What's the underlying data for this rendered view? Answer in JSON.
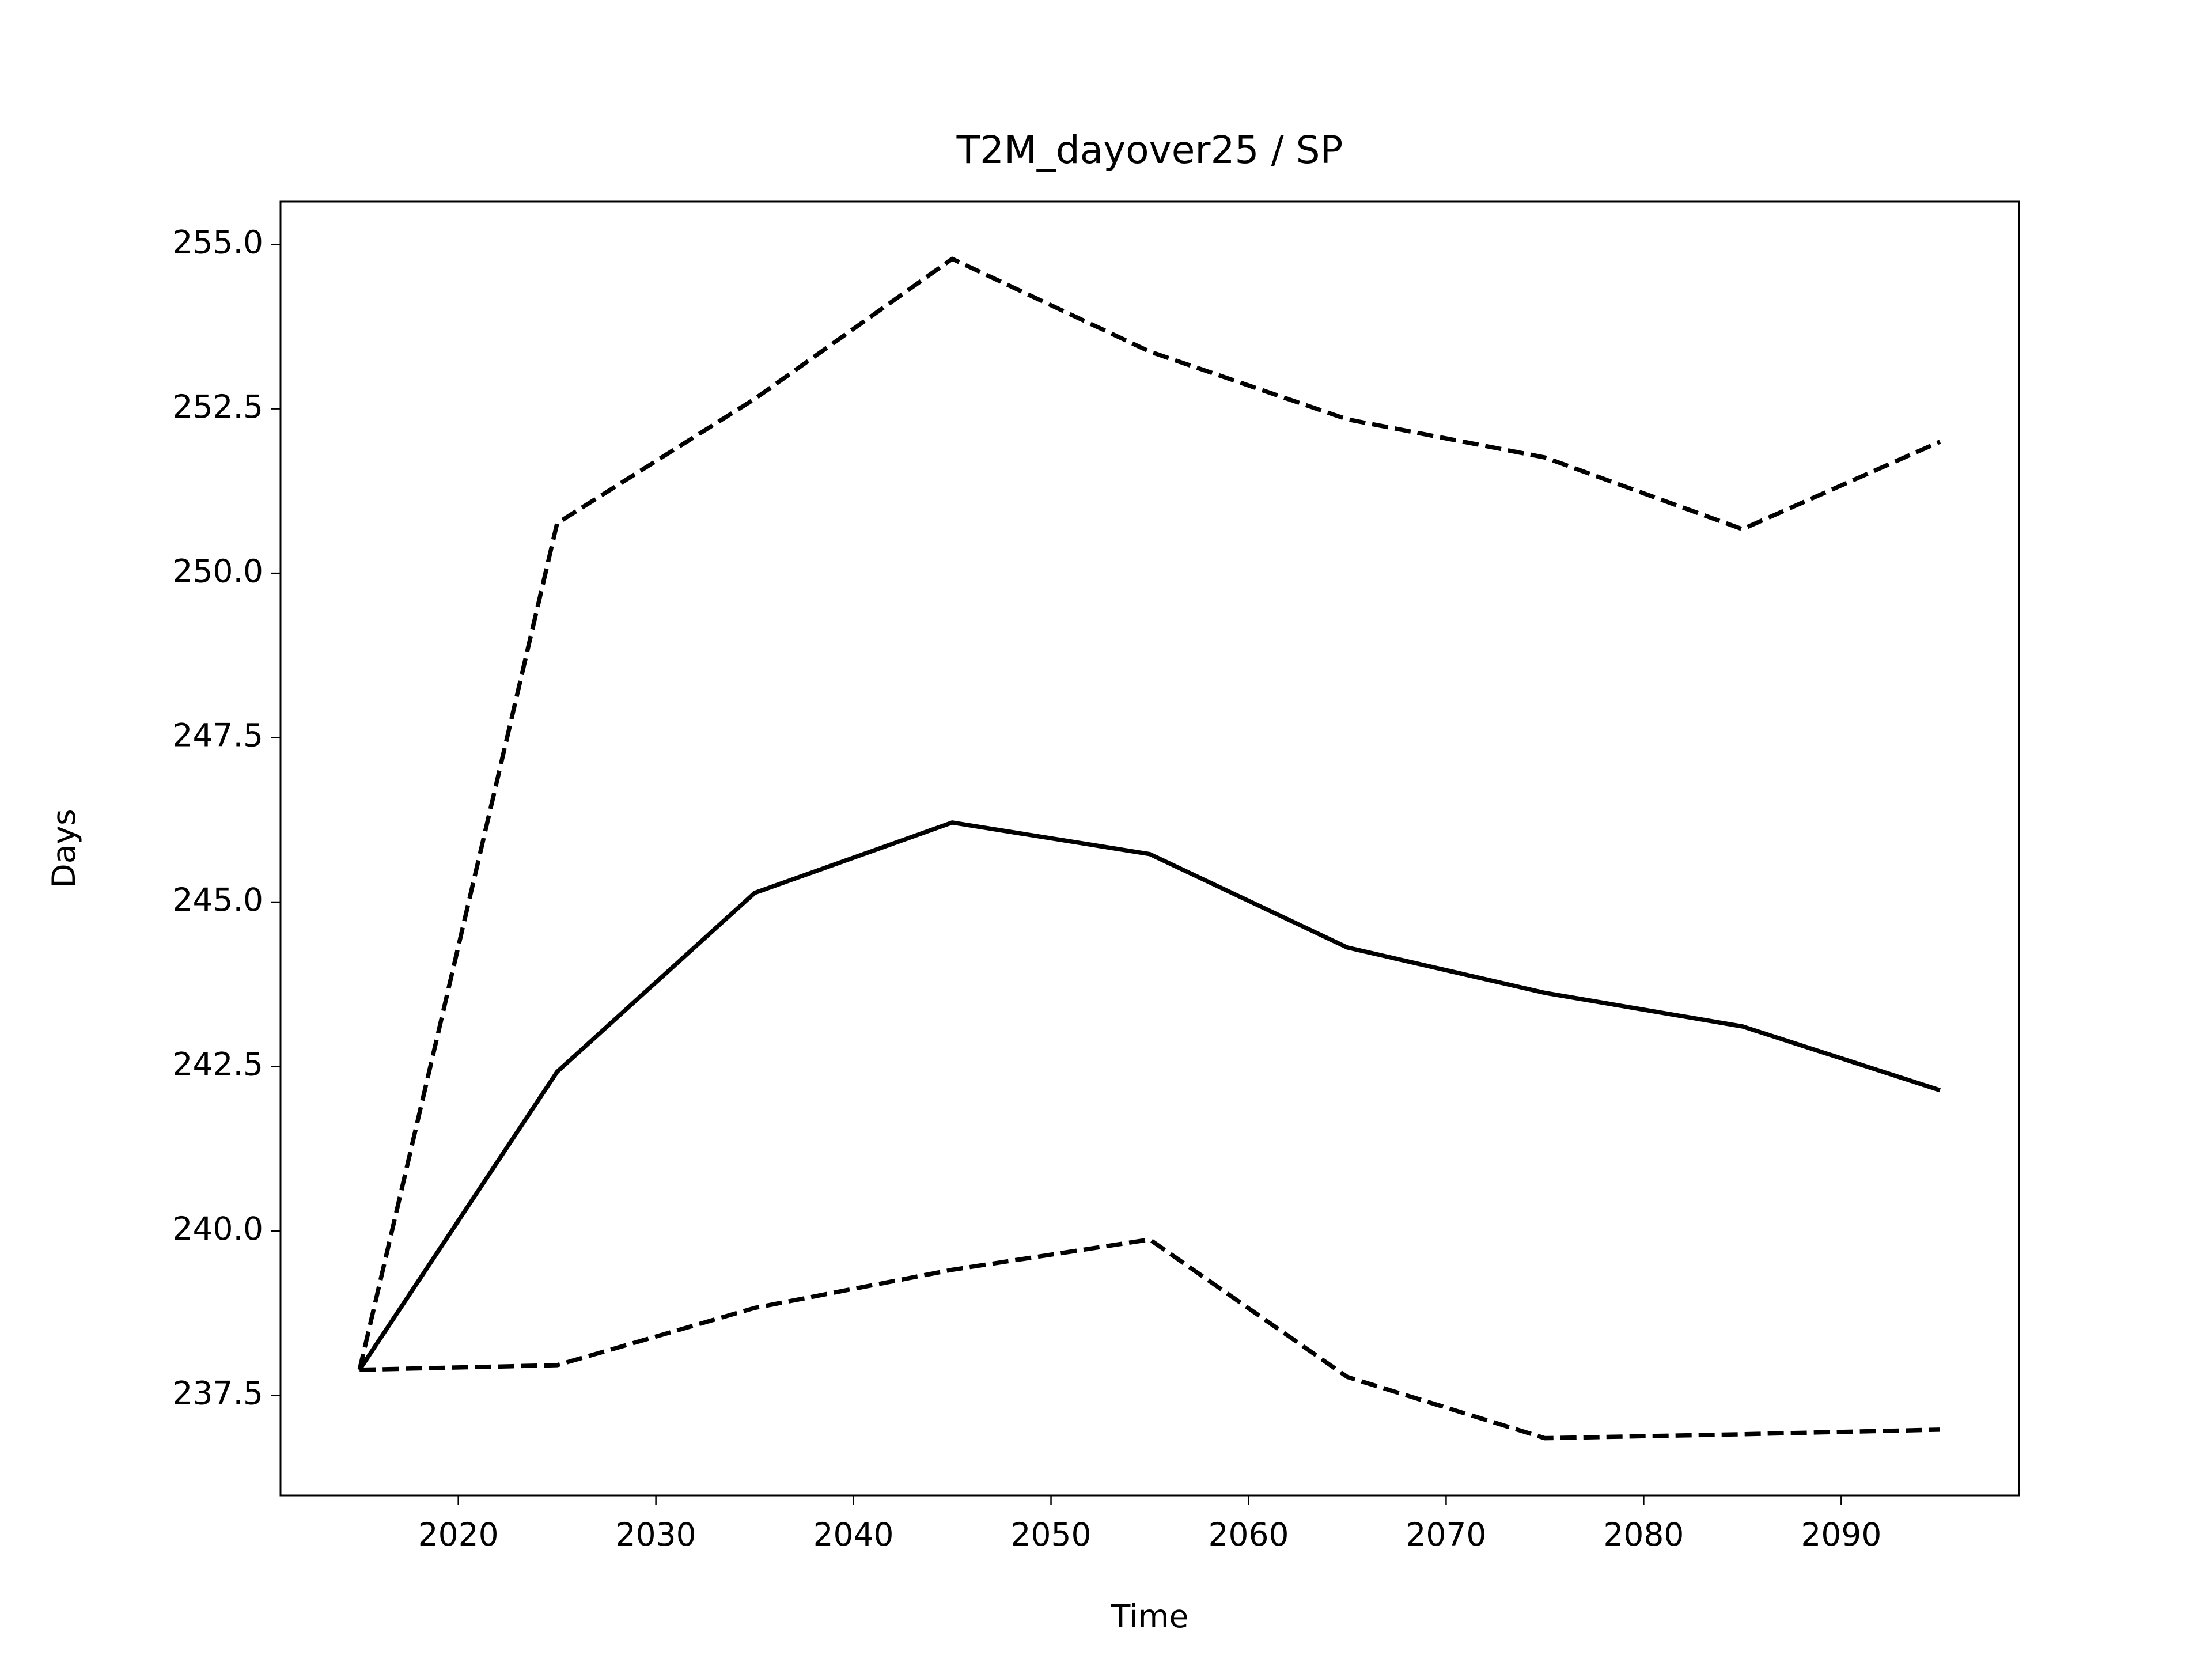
{
  "chart_data": {
    "type": "line",
    "title": "T2M_dayover25 / SP",
    "x_label": "Time",
    "y_label": "Days",
    "x": [
      2015,
      2025,
      2035,
      2045,
      2055,
      2065,
      2075,
      2085,
      2095
    ],
    "series": [
      {
        "color": "#000000",
        "dash": "solid",
        "values": [
          237.89,
          242.42,
          245.14,
          246.21,
          245.73,
          244.31,
          243.62,
          243.11,
          242.14
        ]
      },
      {
        "color": "#000000",
        "dash": "dashed",
        "values": [
          237.89,
          250.76,
          252.65,
          254.78,
          253.37,
          252.34,
          251.76,
          250.67,
          252.0
        ]
      },
      {
        "color": "#000000",
        "dash": "dashed",
        "values": [
          237.89,
          237.96,
          238.83,
          239.41,
          239.87,
          237.78,
          236.85,
          236.91,
          236.98
        ]
      }
    ],
    "xlim": [
      2011,
      2099
    ],
    "xticks": [
      2020,
      2030,
      2040,
      2050,
      2060,
      2070,
      2080,
      2090
    ],
    "ylim": [
      235.98,
      255.65
    ],
    "yticks": [
      237.5,
      {
        "value": 240,
        "label": "240.0"
      },
      242.5,
      {
        "value": 245,
        "label": "245.0"
      },
      247.5,
      {
        "value": 250,
        "label": "250.0"
      },
      252.5,
      {
        "value": 255,
        "label": "255.0"
      }
    ],
    "grid": false
  }
}
